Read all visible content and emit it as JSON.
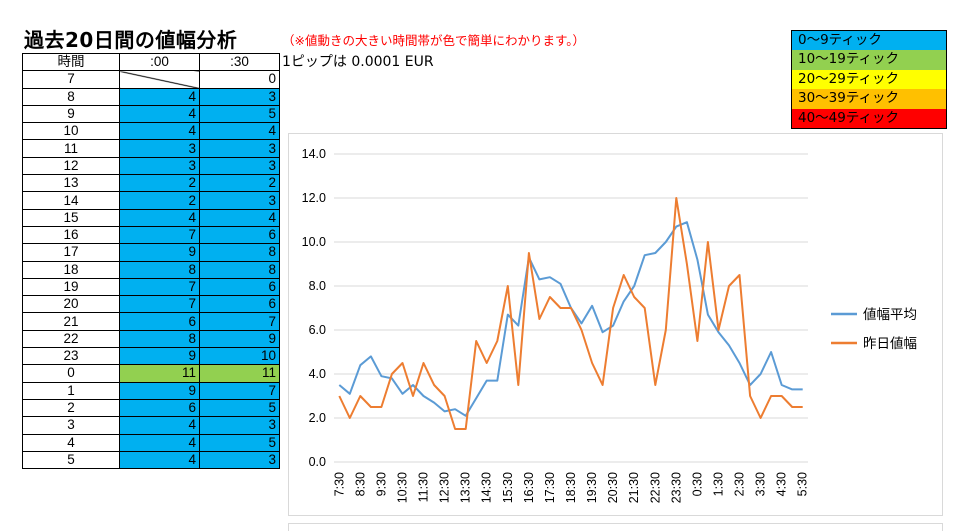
{
  "title": "過去20日間の値幅分析",
  "subtitle": "（※値動きの大きい時間帯が色で簡単にわかります。）",
  "pip_note": "1ピップは 0.0001 EUR",
  "table": {
    "headers": [
      "時間",
      ":00",
      ":30"
    ],
    "rows": [
      {
        "hour": "7",
        "v00": "",
        "v30": "0",
        "l00": "none",
        "l30": "none"
      },
      {
        "hour": "8",
        "v00": "4",
        "v30": "3",
        "l00": "lv0",
        "l30": "lv0"
      },
      {
        "hour": "9",
        "v00": "4",
        "v30": "5",
        "l00": "lv0",
        "l30": "lv0"
      },
      {
        "hour": "10",
        "v00": "4",
        "v30": "4",
        "l00": "lv0",
        "l30": "lv0"
      },
      {
        "hour": "11",
        "v00": "3",
        "v30": "3",
        "l00": "lv0",
        "l30": "lv0"
      },
      {
        "hour": "12",
        "v00": "3",
        "v30": "3",
        "l00": "lv0",
        "l30": "lv0"
      },
      {
        "hour": "13",
        "v00": "2",
        "v30": "2",
        "l00": "lv0",
        "l30": "lv0"
      },
      {
        "hour": "14",
        "v00": "2",
        "v30": "3",
        "l00": "lv0",
        "l30": "lv0"
      },
      {
        "hour": "15",
        "v00": "4",
        "v30": "4",
        "l00": "lv0",
        "l30": "lv0"
      },
      {
        "hour": "16",
        "v00": "7",
        "v30": "6",
        "l00": "lv0",
        "l30": "lv0"
      },
      {
        "hour": "17",
        "v00": "9",
        "v30": "8",
        "l00": "lv0",
        "l30": "lv0"
      },
      {
        "hour": "18",
        "v00": "8",
        "v30": "8",
        "l00": "lv0",
        "l30": "lv0"
      },
      {
        "hour": "19",
        "v00": "7",
        "v30": "6",
        "l00": "lv0",
        "l30": "lv0"
      },
      {
        "hour": "20",
        "v00": "7",
        "v30": "6",
        "l00": "lv0",
        "l30": "lv0"
      },
      {
        "hour": "21",
        "v00": "6",
        "v30": "7",
        "l00": "lv0",
        "l30": "lv0"
      },
      {
        "hour": "22",
        "v00": "8",
        "v30": "9",
        "l00": "lv0",
        "l30": "lv0"
      },
      {
        "hour": "23",
        "v00": "9",
        "v30": "10",
        "l00": "lv0",
        "l30": "lv0"
      },
      {
        "hour": "0",
        "v00": "11",
        "v30": "11",
        "l00": "lv1",
        "l30": "lv1"
      },
      {
        "hour": "1",
        "v00": "9",
        "v30": "7",
        "l00": "lv0",
        "l30": "lv0"
      },
      {
        "hour": "2",
        "v00": "6",
        "v30": "5",
        "l00": "lv0",
        "l30": "lv0"
      },
      {
        "hour": "3",
        "v00": "4",
        "v30": "3",
        "l00": "lv0",
        "l30": "lv0"
      },
      {
        "hour": "4",
        "v00": "4",
        "v30": "5",
        "l00": "lv0",
        "l30": "lv0"
      },
      {
        "hour": "5",
        "v00": "4",
        "v30": "3",
        "l00": "lv0",
        "l30": "lv0"
      }
    ]
  },
  "levels": [
    {
      "label": "0～9ティック",
      "color": "#00b0f0"
    },
    {
      "label": "10～19ティック",
      "color": "#92d050"
    },
    {
      "label": "20～29ティック",
      "color": "#ffff00"
    },
    {
      "label": "30～39ティック",
      "color": "#ffc000"
    },
    {
      "label": "40～49ティック",
      "color": "#ff0000"
    }
  ],
  "chart_data": {
    "type": "line",
    "x": [
      "7:30",
      "8:00",
      "8:30",
      "9:00",
      "9:30",
      "10:00",
      "10:30",
      "11:00",
      "11:30",
      "12:00",
      "12:30",
      "13:00",
      "13:30",
      "14:00",
      "14:30",
      "15:00",
      "15:30",
      "16:00",
      "16:30",
      "17:00",
      "17:30",
      "18:00",
      "18:30",
      "19:00",
      "19:30",
      "20:00",
      "20:30",
      "21:00",
      "21:30",
      "22:00",
      "22:30",
      "23:00",
      "23:30",
      "0:00",
      "0:30",
      "1:00",
      "1:30",
      "2:00",
      "2:30",
      "3:00",
      "3:30",
      "4:00",
      "4:30",
      "5:00",
      "5:30"
    ],
    "x_tick_labels": [
      "7:30",
      "8:30",
      "9:30",
      "10:30",
      "11:30",
      "12:30",
      "13:30",
      "14:30",
      "15:30",
      "16:30",
      "17:30",
      "18:30",
      "19:30",
      "20:30",
      "21:30",
      "22:30",
      "23:30",
      "0:30",
      "1:30",
      "2:30",
      "3:30",
      "4:30",
      "5:30"
    ],
    "series": [
      {
        "name": "値幅平均",
        "color": "#5b9bd5",
        "values": [
          3.5,
          3.1,
          4.4,
          4.8,
          3.9,
          3.8,
          3.1,
          3.5,
          3.0,
          2.7,
          2.3,
          2.4,
          2.1,
          2.9,
          3.7,
          3.7,
          6.7,
          6.2,
          9.3,
          8.3,
          8.4,
          8.1,
          7.0,
          6.3,
          7.1,
          5.9,
          6.2,
          7.3,
          8.0,
          9.4,
          9.5,
          10.0,
          10.7,
          10.9,
          9.2,
          6.7,
          5.9,
          5.3,
          4.5,
          3.5,
          4.0,
          5.0,
          3.5,
          3.3,
          3.3
        ]
      },
      {
        "name": "昨日値幅",
        "color": "#ed7d31",
        "values": [
          3.0,
          2.0,
          3.0,
          2.5,
          2.5,
          4.0,
          4.5,
          3.0,
          4.5,
          3.5,
          3.0,
          1.5,
          1.5,
          5.5,
          4.5,
          5.5,
          8.0,
          3.5,
          9.5,
          6.5,
          7.5,
          7.0,
          7.0,
          6.0,
          4.5,
          3.5,
          7.0,
          8.5,
          7.5,
          7.0,
          3.5,
          6.0,
          12.0,
          9.0,
          5.5,
          10.0,
          6.0,
          8.0,
          8.5,
          3.0,
          2.0,
          3.0,
          3.0,
          2.5,
          2.5
        ]
      }
    ],
    "y_ticks": [
      "0.0",
      "2.0",
      "4.0",
      "6.0",
      "8.0",
      "10.0",
      "12.0",
      "14.0"
    ],
    "ylim": [
      0,
      14
    ],
    "grid": true,
    "legend_position": "right"
  }
}
